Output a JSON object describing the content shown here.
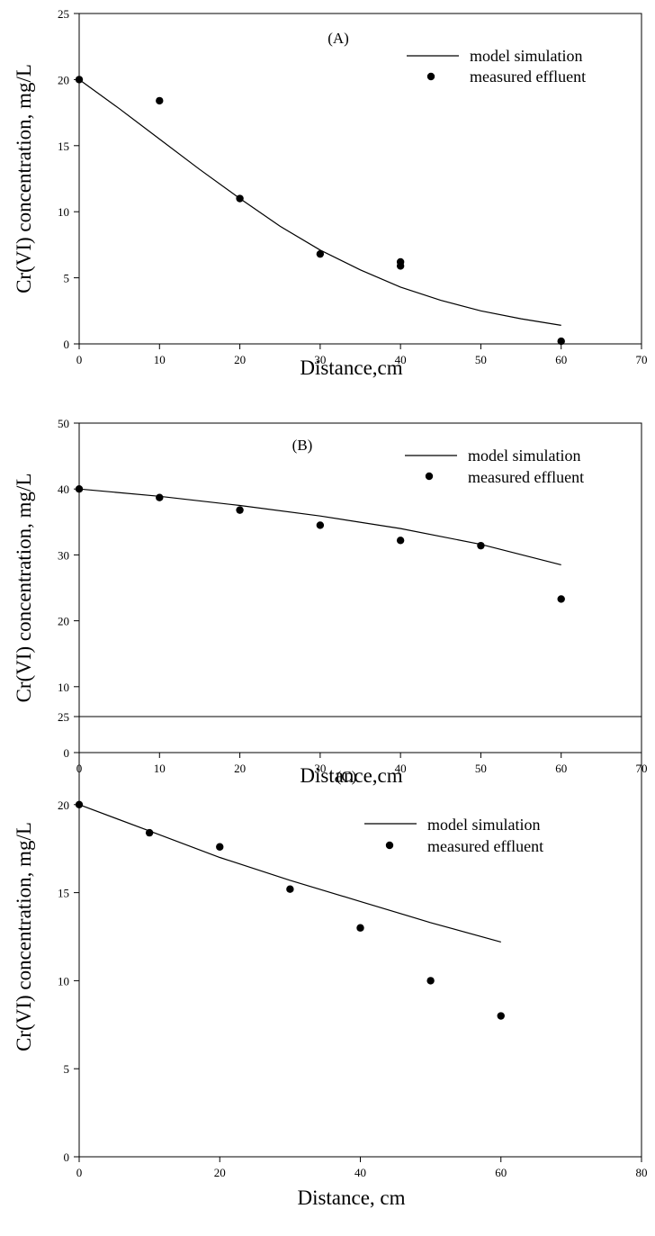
{
  "chart_data": [
    {
      "type": "line",
      "panel_label": "(A)",
      "xlabel": "Distance,cm",
      "ylabel": "Cr(VI) concentration, mg/L",
      "xlim": [
        0,
        70
      ],
      "ylim": [
        0,
        25
      ],
      "xticks": [
        "0",
        "10",
        "20",
        "30",
        "40",
        "50",
        "60",
        "70"
      ],
      "yticks": [
        "0",
        "5",
        "10",
        "15",
        "20",
        "25"
      ],
      "grid": false,
      "legend_position": "top-right",
      "series": [
        {
          "name": "model simulation",
          "kind": "line",
          "x": [
            0,
            5,
            10,
            15,
            20,
            25,
            30,
            35,
            40,
            45,
            50,
            55,
            60
          ],
          "y": [
            20.0,
            17.8,
            15.5,
            13.2,
            11.0,
            8.9,
            7.1,
            5.6,
            4.3,
            3.3,
            2.5,
            1.9,
            1.4
          ]
        },
        {
          "name": "measured effluent",
          "kind": "scatter",
          "x": [
            0,
            10,
            20,
            30,
            40,
            40,
            60
          ],
          "y": [
            20.0,
            18.4,
            11.0,
            6.8,
            6.2,
            5.9,
            0.2
          ]
        }
      ]
    },
    {
      "type": "line",
      "panel_label": "(B)",
      "xlabel": "Distance,cm",
      "ylabel": "Cr(VI) concentration, mg/L",
      "xlim": [
        0,
        70
      ],
      "ylim": [
        0,
        50
      ],
      "xticks": [
        "0",
        "10",
        "20",
        "30",
        "40",
        "50",
        "60",
        "70"
      ],
      "yticks": [
        "0",
        "10",
        "20",
        "30",
        "40",
        "50"
      ],
      "grid": false,
      "legend_position": "top-right",
      "series": [
        {
          "name": "model simulation",
          "kind": "line",
          "x": [
            0,
            10,
            20,
            30,
            40,
            50,
            60
          ],
          "y": [
            40.0,
            38.9,
            37.5,
            35.9,
            34.0,
            31.6,
            28.5
          ]
        },
        {
          "name": "measured effluent",
          "kind": "scatter",
          "x": [
            0,
            10,
            20,
            30,
            40,
            50,
            60
          ],
          "y": [
            40.0,
            38.7,
            36.8,
            34.5,
            32.2,
            31.4,
            23.3
          ]
        }
      ]
    },
    {
      "type": "line",
      "panel_label": "(C)",
      "xlabel": "Distance, cm",
      "ylabel": "Cr(VI) concentration, mg/L",
      "xlim": [
        0,
        80
      ],
      "ylim": [
        0,
        25
      ],
      "xticks": [
        "0",
        "20",
        "40",
        "60",
        "80"
      ],
      "yticks": [
        "0",
        "5",
        "10",
        "15",
        "20",
        "25"
      ],
      "grid": false,
      "legend_position": "top-right",
      "series": [
        {
          "name": "model simulation",
          "kind": "line",
          "x": [
            0,
            10,
            20,
            30,
            40,
            50,
            60
          ],
          "y": [
            20.0,
            18.5,
            17.0,
            15.7,
            14.5,
            13.3,
            12.2
          ]
        },
        {
          "name": "measured effluent",
          "kind": "scatter",
          "x": [
            0,
            10,
            20,
            30,
            40,
            50,
            60
          ],
          "y": [
            20.0,
            18.4,
            17.6,
            15.2,
            13.0,
            10.0,
            8.0
          ]
        }
      ]
    }
  ]
}
